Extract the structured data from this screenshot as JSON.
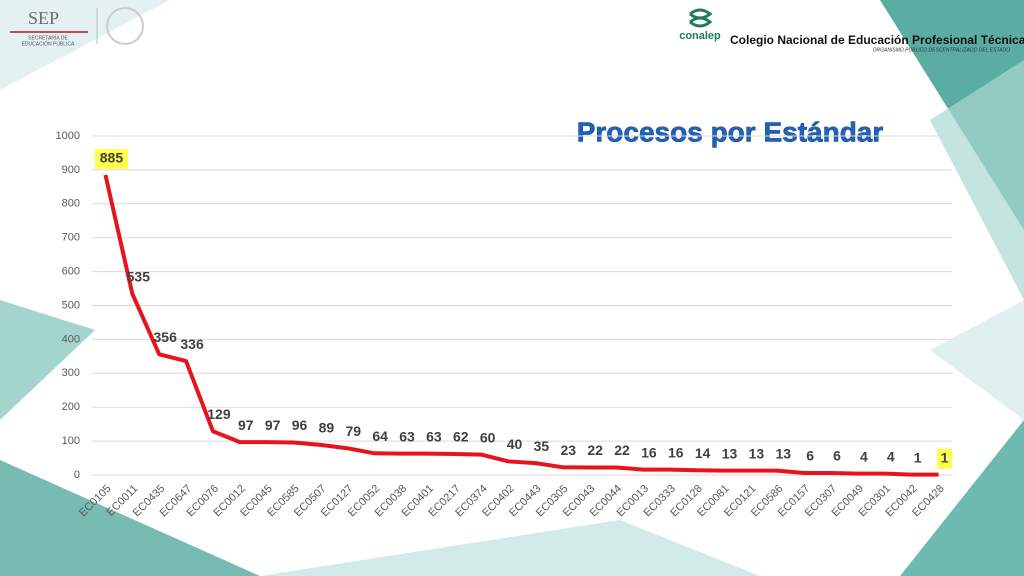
{
  "header": {
    "sep": "SEP",
    "sep_sub1": "SECRETARÍA DE",
    "sep_sub2": "EDUCACIÓN PÚBLICA",
    "conalep": "conalep",
    "college": "Colegio Nacional de Educación Profesional Técnica",
    "college_sub": "ORGANISMO PÚBLICO DESCENTRALIZADO DEL ESTADO"
  },
  "chart_data": {
    "type": "line",
    "title": "Procesos por Estándar",
    "categories": [
      "EC0105",
      "EC0011",
      "EC0435",
      "EC0647",
      "EC0076",
      "EC0012",
      "EC0045",
      "EC0585",
      "EC0507",
      "EC0127",
      "EC0052",
      "EC0038",
      "EC0401",
      "EC0217",
      "EC0374",
      "EC0402",
      "EC0443",
      "EC0305",
      "EC0043",
      "EC0044",
      "EC0013",
      "EC0333",
      "EC0128",
      "EC0081",
      "EC0121",
      "EC0586",
      "EC0157",
      "EC0307",
      "EC0049",
      "EC0301",
      "EC0042",
      "EC0428"
    ],
    "values": [
      885,
      535,
      356,
      336,
      129,
      97,
      97,
      96,
      89,
      79,
      64,
      63,
      63,
      62,
      60,
      40,
      35,
      23,
      22,
      22,
      16,
      16,
      14,
      13,
      13,
      13,
      6,
      6,
      4,
      4,
      1,
      1
    ],
    "color": "#e8141c",
    "highlighted": [
      0,
      31
    ],
    "highlight_color": "#ffff4d",
    "ylim": [
      0,
      1000
    ],
    "yticks": [
      0,
      100,
      200,
      300,
      400,
      500,
      600,
      700,
      800,
      900,
      1000
    ],
    "grid": true
  }
}
